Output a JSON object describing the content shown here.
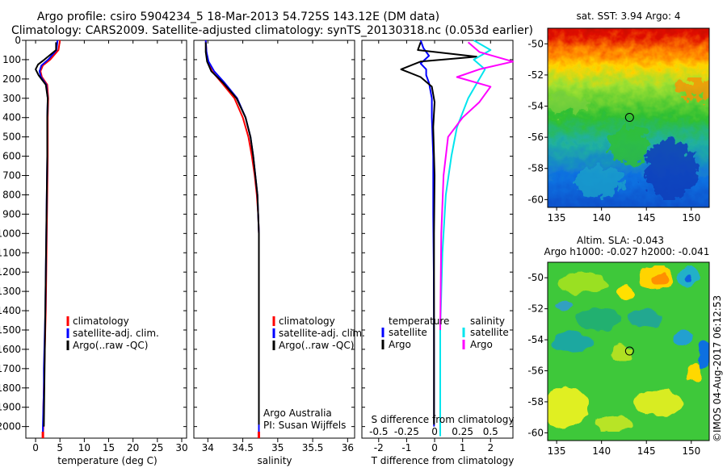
{
  "header": {
    "title_line1": "Argo profile: csiro 5904234_5 18-Mar-2013 54.725S 143.12E (DM data)",
    "title_line2": "Climatology: CARS2009. Satellite-adjusted climatology: synTS_20130318.nc (0.053d earlier)"
  },
  "colors": {
    "climatology": "#ff0000",
    "satellite": "#0000ff",
    "argo": "#000000",
    "sat_salinity": "#00e5ee",
    "argo_salinity": "#ff00ff"
  },
  "chart_data": [
    {
      "id": "temperature",
      "type": "line",
      "xlabel": "temperature (deg C)",
      "ylabel": "depth",
      "xlim": [
        -2,
        31
      ],
      "ylim": [
        2060,
        0
      ],
      "xticks": [
        0,
        5,
        10,
        15,
        20,
        25,
        30
      ],
      "yticks": [
        0,
        100,
        200,
        300,
        400,
        500,
        600,
        700,
        800,
        900,
        1000,
        1100,
        1200,
        1300,
        1400,
        1500,
        1600,
        1700,
        1800,
        1900,
        2000
      ],
      "legend": [
        "climatology",
        "satellite-adj. clim.",
        "Argo(..raw -QC)"
      ],
      "series": [
        {
          "name": "climatology",
          "color": "#ff0000",
          "x": [
            5.0,
            4.7,
            3.0,
            1.5,
            1.0,
            1.3,
            2.4,
            2.6,
            2.5,
            2.5,
            2.4,
            2.3,
            2.2,
            2.1,
            2.0,
            1.9,
            1.8,
            1.7,
            1.6,
            1.6,
            1.5
          ],
          "y": [
            0,
            50,
            100,
            130,
            160,
            190,
            230,
            300,
            400,
            600,
            800,
            1000,
            1200,
            1400,
            1500,
            1600,
            1700,
            1800,
            1900,
            2000,
            2050
          ]
        },
        {
          "name": "satellite",
          "color": "#0000ff",
          "x": [
            4.5,
            4.3,
            2.6,
            1.2,
            0.8,
            1.1,
            2.2,
            2.5,
            2.4,
            2.4,
            2.3,
            2.2,
            2.1,
            2.0,
            1.9,
            1.8,
            1.7,
            1.7,
            1.6,
            1.5,
            1.5
          ],
          "y": [
            0,
            50,
            100,
            130,
            160,
            190,
            230,
            300,
            400,
            600,
            800,
            1000,
            1200,
            1400,
            1500,
            1600,
            1700,
            1800,
            1900,
            2000,
            2050
          ]
        },
        {
          "name": "Argo",
          "color": "#000000",
          "x": [
            4.2,
            4.2,
            1.8,
            0.5,
            0.0,
            0.6,
            2.1,
            2.5,
            2.4,
            2.4,
            2.3,
            2.2,
            2.1,
            2.0,
            1.9,
            1.8,
            1.7
          ],
          "y": [
            10,
            50,
            100,
            125,
            150,
            180,
            230,
            300,
            400,
            600,
            800,
            1000,
            1200,
            1400,
            1600,
            1800,
            2000
          ]
        }
      ]
    },
    {
      "id": "salinity",
      "type": "line",
      "xlabel": "salinity",
      "xlim": [
        33.8,
        36.1
      ],
      "ylim": [
        2060,
        0
      ],
      "xticks": [
        34,
        34.5,
        35,
        35.5,
        36
      ],
      "legend": [
        "climatology",
        "satellite-adj. clim.",
        "Argo(..raw -QC)"
      ],
      "annotation": [
        "Argo Australia",
        "PI: Susan Wijffels"
      ],
      "series": [
        {
          "name": "climatology",
          "color": "#ff0000",
          "x": [
            33.97,
            33.98,
            34.0,
            34.06,
            34.2,
            34.38,
            34.5,
            34.58,
            34.63,
            34.67,
            34.7,
            34.72,
            34.73,
            34.73,
            34.73,
            34.73,
            34.73
          ],
          "y": [
            0,
            60,
            110,
            160,
            220,
            300,
            400,
            500,
            600,
            700,
            800,
            900,
            1000,
            1200,
            1500,
            1800,
            2050
          ]
        },
        {
          "name": "satellite",
          "color": "#0000ff",
          "x": [
            33.97,
            33.98,
            34.01,
            34.09,
            34.24,
            34.42,
            34.54,
            34.61,
            34.65,
            34.68,
            34.71,
            34.72,
            34.73,
            34.73,
            34.73,
            34.73,
            34.73
          ],
          "y": [
            0,
            60,
            110,
            160,
            220,
            300,
            400,
            500,
            600,
            700,
            800,
            900,
            1000,
            1200,
            1500,
            1800,
            2050
          ]
        },
        {
          "name": "Argo",
          "color": "#000000",
          "x": [
            33.97,
            33.97,
            33.99,
            34.05,
            34.22,
            34.41,
            34.54,
            34.61,
            34.65,
            34.68,
            34.71,
            34.72,
            34.73,
            34.73,
            34.73
          ],
          "y": [
            10,
            60,
            110,
            160,
            220,
            300,
            400,
            500,
            600,
            700,
            800,
            900,
            1000,
            1400,
            1990
          ]
        }
      ]
    },
    {
      "id": "differences",
      "type": "line",
      "xlabel": "T difference from climatology",
      "xlabel2": "S difference from climatology",
      "xlim": [
        -2.6,
        2.8
      ],
      "ylim": [
        2060,
        0
      ],
      "xticks": [
        -2,
        -1,
        0,
        1,
        2
      ],
      "xticklabels": [
        "-2",
        "-1",
        "0",
        "1",
        "2"
      ],
      "xticks2": [
        -0.5,
        -0.25,
        0,
        0.25,
        0.5
      ],
      "xticklabels2": [
        "-0.5",
        "-0.25",
        "0",
        "0.25",
        "0.5"
      ],
      "legend_temperature": [
        "temperature",
        "satellite",
        "Argo"
      ],
      "legend_salinity": [
        "salinity",
        "satellite",
        "Argo"
      ],
      "series": [
        {
          "name": "temperature satellite",
          "color": "#0000ff",
          "x": [
            -0.5,
            -0.4,
            -0.2,
            -0.5,
            -0.3,
            -0.3,
            -0.2,
            -0.1,
            -0.1,
            -0.05,
            -0.05,
            -0.03,
            -0.02,
            -0.02
          ],
          "y": [
            0,
            40,
            80,
            120,
            150,
            180,
            220,
            300,
            400,
            600,
            900,
            1200,
            1600,
            2000
          ]
        },
        {
          "name": "temperature Argo",
          "color": "#000000",
          "x": [
            -0.5,
            -0.6,
            1.5,
            -0.5,
            -1.2,
            -0.5,
            -0.1,
            0.0,
            -0.05,
            0.0,
            -0.02,
            -0.02,
            -0.02
          ],
          "y": [
            10,
            50,
            85,
            110,
            150,
            190,
            240,
            320,
            450,
            700,
            1000,
            1500,
            1990
          ]
        },
        {
          "name": "salinity satellite",
          "color": "#00e5ee",
          "x": [
            0.35,
            0.5,
            0.35,
            0.45,
            0.4,
            0.3,
            0.2,
            0.15,
            0.1,
            0.07,
            0.05,
            0.05
          ],
          "y": [
            0,
            50,
            100,
            150,
            200,
            300,
            450,
            600,
            800,
            1100,
            1500,
            2050
          ]
        },
        {
          "name": "salinity Argo",
          "color": "#ff00ff",
          "x": [
            0.3,
            0.4,
            0.7,
            0.4,
            0.2,
            0.5,
            0.4,
            0.25,
            0.12,
            0.08,
            0.06,
            0.05
          ],
          "y": [
            10,
            60,
            110,
            150,
            190,
            240,
            320,
            400,
            500,
            700,
            1000,
            1500
          ]
        }
      ]
    },
    {
      "id": "sat_sst_map",
      "type": "heatmap",
      "title": "sat. SST: 3.94  Argo: 4",
      "xlim": [
        134,
        152
      ],
      "ylim": [
        -60.5,
        -49
      ],
      "xticks": [
        135,
        140,
        145,
        150
      ],
      "yticks": [
        -50,
        -52,
        -54,
        -56,
        -58,
        -60
      ],
      "marker": {
        "lon": 143.12,
        "lat": -54.725
      }
    },
    {
      "id": "altim_sla_map",
      "type": "heatmap",
      "title": "Altim. SLA: -0.043",
      "subtitle": "Argo h1000: -0.027  h2000: -0.041",
      "xlim": [
        134,
        152
      ],
      "ylim": [
        -60.5,
        -49
      ],
      "xticks": [
        135,
        140,
        145,
        150
      ],
      "yticks": [
        -50,
        -52,
        -54,
        -56,
        -58,
        -60
      ],
      "marker": {
        "lon": 143.12,
        "lat": -54.725
      }
    }
  ],
  "footer": {
    "credit": "©IMOS 04-Aug-2017 06:12:53"
  }
}
